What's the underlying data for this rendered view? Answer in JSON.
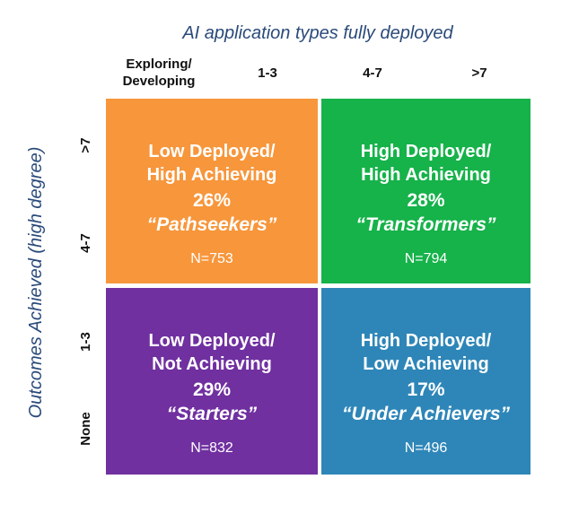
{
  "x_axis": {
    "title": "AI application types fully deployed",
    "ticks": [
      "Exploring/\nDeveloping",
      "1-3",
      "4-7",
      ">7"
    ]
  },
  "y_axis": {
    "title": "Outcomes Achieved (high degree)",
    "ticks": [
      ">7",
      "4-7",
      "1-3",
      "None"
    ]
  },
  "quadrants": {
    "top_left": {
      "name": "Low Deployed/\nHigh Achieving",
      "pct": "26%",
      "label": "“Pathseekers”",
      "n": "N=753",
      "color": "#f7963b"
    },
    "top_right": {
      "name": "High Deployed/\nHigh Achieving",
      "pct": "28%",
      "label": "“Transformers”",
      "n": "N=794",
      "color": "#16b24a"
    },
    "bottom_left": {
      "name": "Low Deployed/\nNot Achieving",
      "pct": "29%",
      "label": "“Starters”",
      "n": "N=832",
      "color": "#7030a0"
    },
    "bottom_right": {
      "name": "High Deployed/\nLow Achieving",
      "pct": "17%",
      "label": "“Under Achievers”",
      "n": "N=496",
      "color": "#2e86b8"
    }
  }
}
